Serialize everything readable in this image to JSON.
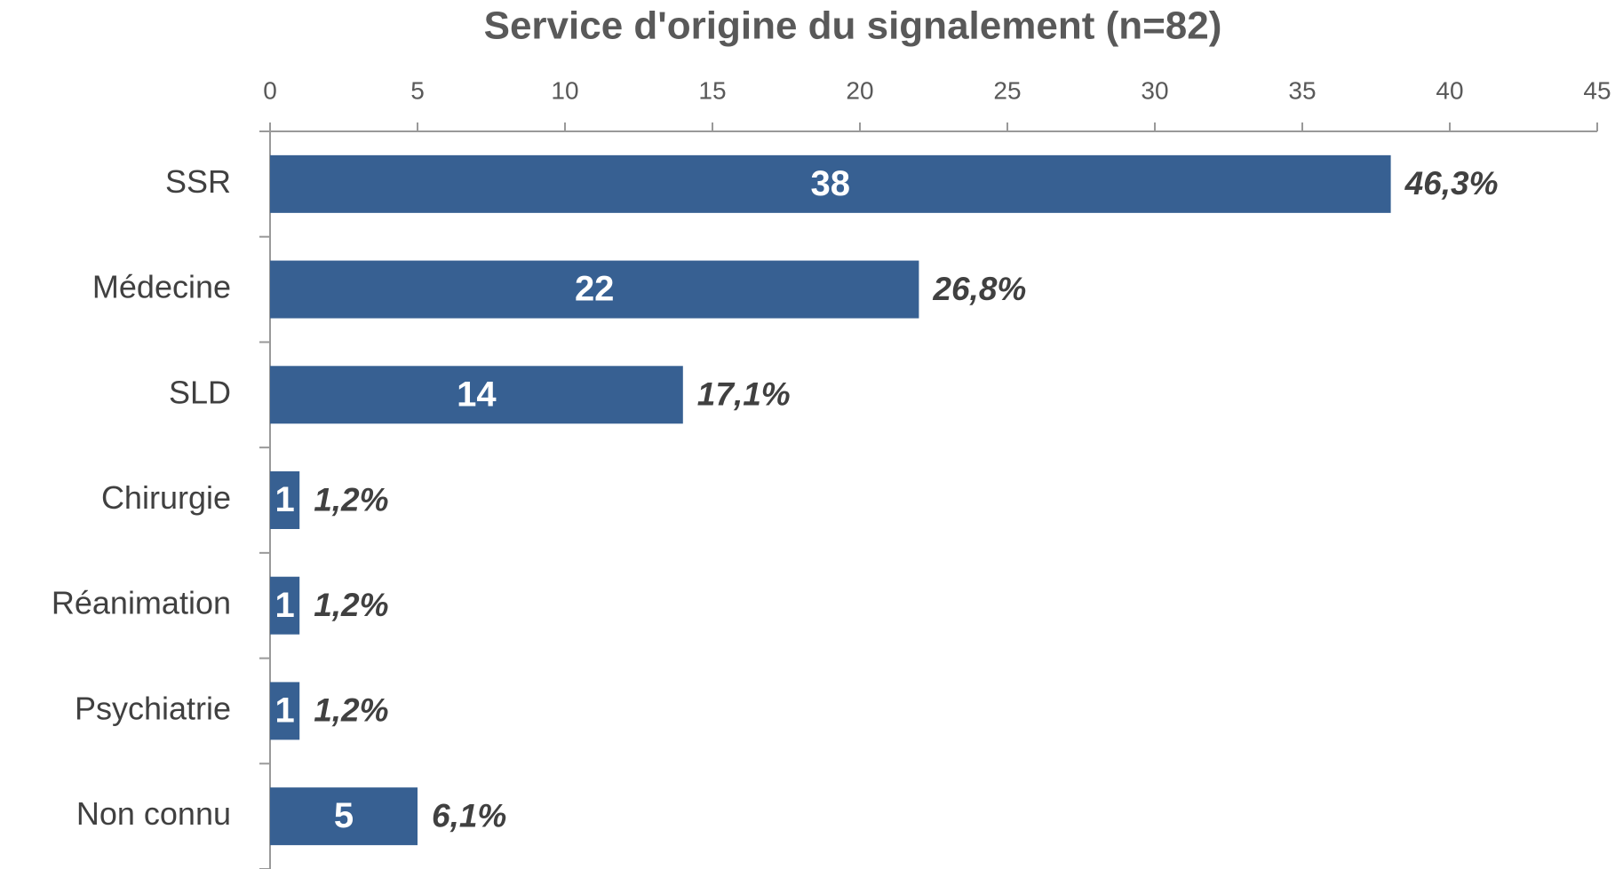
{
  "chart_data": {
    "type": "bar",
    "orientation": "horizontal",
    "title": "Service d'origine du signalement (n=82)",
    "categories": [
      "SSR",
      "Médecine",
      "SLD",
      "Chirurgie",
      "Réanimation",
      "Psychiatrie",
      "Non connu"
    ],
    "values": [
      38,
      22,
      14,
      1,
      1,
      1,
      5
    ],
    "percent_labels": [
      "46,3%",
      "26,8%",
      "17,1%",
      "1,2%",
      "1,2%",
      "1,2%",
      "6,1%"
    ],
    "color": "#376092",
    "xlim": [
      0,
      45
    ],
    "xticks": [
      0,
      5,
      10,
      15,
      20,
      25,
      30,
      35,
      40,
      45
    ],
    "grid": false
  }
}
